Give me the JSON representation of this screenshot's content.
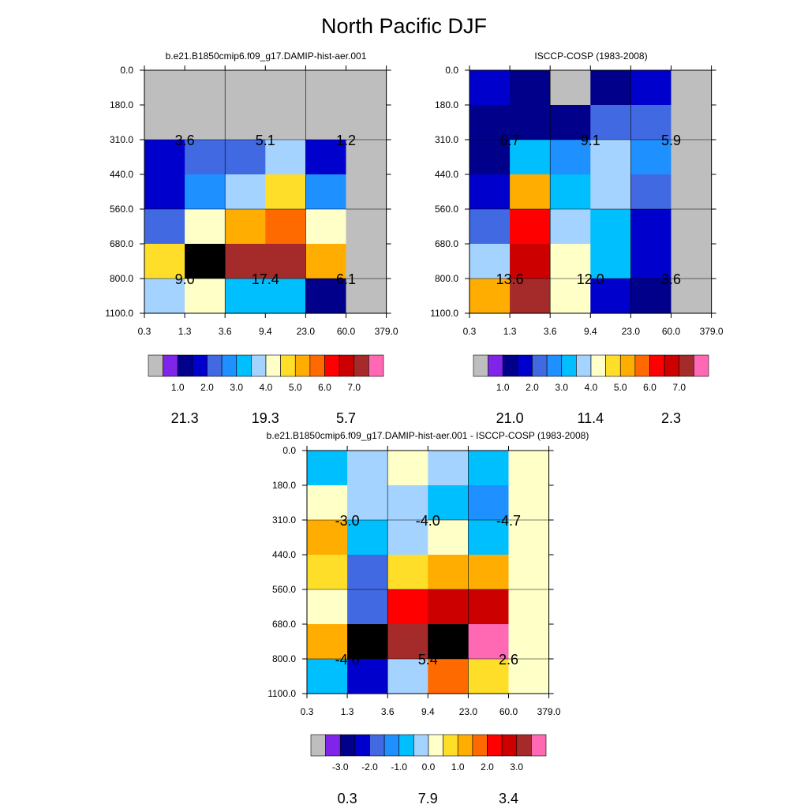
{
  "title": "North Pacific DJF",
  "x_tick_labels": [
    "0.3",
    "1.3",
    "3.6",
    "9.4",
    "23.0",
    "60.0",
    "379.0"
  ],
  "y_tick_labels": [
    "0.0",
    "180.0",
    "310.0",
    "440.0",
    "560.0",
    "680.0",
    "800.0",
    "1100.0"
  ],
  "colors": {
    "fill": "#bebebe",
    "palette": [
      "#7f24e8",
      "#00008b",
      "#0000cd",
      "#4169e1",
      "#1e90ff",
      "#00bfff",
      "#a4d3ff",
      "#ffffc8",
      "#ffde2a",
      "#ffad00",
      "#ff6a00",
      "#ff0000",
      "#cd0000",
      "#a52a2a",
      "#ff69b4"
    ]
  },
  "colorbars": {
    "abs": {
      "labels": [
        "1.0",
        "2.0",
        "3.0",
        "4.0",
        "5.0",
        "6.0",
        "7.0"
      ],
      "boxes": 16
    },
    "diff": {
      "labels": [
        "-3.0",
        "-2.0",
        "-1.0",
        "0.0",
        "1.0",
        "2.0",
        "3.0"
      ],
      "boxes": 16
    }
  },
  "chart_data": [
    {
      "type": "heatmap",
      "title": "b.e21.B1850cmip6.f09_g17.DAMIP-hist-aer.001",
      "x_edges": [
        0.3,
        1.3,
        3.6,
        9.4,
        23.0,
        60.0,
        379.0
      ],
      "y_edges": [
        0.0,
        180.0,
        310.0,
        440.0,
        560.0,
        680.0,
        800.0,
        1100.0
      ],
      "cell_color_index": [
        [
          0,
          0,
          0,
          0,
          0,
          0
        ],
        [
          0,
          0,
          0,
          0,
          0,
          0
        ],
        [
          3,
          4,
          4,
          7,
          3,
          0
        ],
        [
          3,
          5,
          7,
          9,
          5,
          0
        ],
        [
          4,
          8,
          10,
          11,
          8,
          0
        ],
        [
          9,
          16,
          14,
          14,
          10,
          0
        ],
        [
          7,
          8,
          6,
          6,
          2,
          0
        ]
      ],
      "annotations": [
        {
          "x_bin": 0,
          "y_row": 1,
          "text": "3.6"
        },
        {
          "x_bin": 1,
          "y_row": 1,
          "text": "5.1"
        },
        {
          "x_bin": 2,
          "y_row": 1,
          "text": "1.2"
        },
        {
          "x_bin": 0,
          "y_row": 3,
          "text": "9.0"
        },
        {
          "x_bin": 1,
          "y_row": 3,
          "text": "17.4"
        },
        {
          "x_bin": 2,
          "y_row": 3,
          "text": "6.1"
        },
        {
          "x_bin": 0,
          "y_row": 5,
          "text": "21.3"
        },
        {
          "x_bin": 1,
          "y_row": 5,
          "text": "19.3"
        },
        {
          "x_bin": 2,
          "y_row": 5,
          "text": "5.7"
        }
      ]
    },
    {
      "type": "heatmap",
      "title": "ISCCP-COSP (1983-2008)",
      "x_edges": [
        0.3,
        1.3,
        3.6,
        9.4,
        23.0,
        60.0,
        379.0
      ],
      "y_edges": [
        0.0,
        180.0,
        310.0,
        440.0,
        560.0,
        680.0,
        800.0,
        1100.0
      ],
      "cell_color_index": [
        [
          3,
          2,
          0,
          2,
          3,
          0
        ],
        [
          2,
          2,
          2,
          4,
          4,
          0
        ],
        [
          2,
          6,
          5,
          7,
          5,
          0
        ],
        [
          3,
          10,
          6,
          7,
          4,
          0
        ],
        [
          4,
          12,
          7,
          6,
          3,
          0
        ],
        [
          7,
          13,
          8,
          6,
          3,
          0
        ],
        [
          10,
          14,
          8,
          3,
          2,
          0
        ]
      ],
      "annotations": [
        {
          "x_bin": 0,
          "y_row": 1,
          "text": "6.7"
        },
        {
          "x_bin": 1,
          "y_row": 1,
          "text": "9.1"
        },
        {
          "x_bin": 2,
          "y_row": 1,
          "text": "5.9"
        },
        {
          "x_bin": 0,
          "y_row": 3,
          "text": "13.6"
        },
        {
          "x_bin": 1,
          "y_row": 3,
          "text": "12.0"
        },
        {
          "x_bin": 2,
          "y_row": 3,
          "text": "3.6"
        },
        {
          "x_bin": 0,
          "y_row": 5,
          "text": "21.0"
        },
        {
          "x_bin": 1,
          "y_row": 5,
          "text": "11.4"
        },
        {
          "x_bin": 2,
          "y_row": 5,
          "text": "2.3"
        }
      ]
    },
    {
      "type": "heatmap",
      "title": "b.e21.B1850cmip6.f09_g17.DAMIP-hist-aer.001 - ISCCP-COSP (1983-2008)",
      "x_edges": [
        0.3,
        1.3,
        3.6,
        9.4,
        23.0,
        60.0,
        379.0
      ],
      "y_edges": [
        0.0,
        180.0,
        310.0,
        440.0,
        560.0,
        680.0,
        800.0,
        1100.0
      ],
      "cell_color_index": [
        [
          6,
          7,
          8,
          7,
          6,
          8
        ],
        [
          8,
          7,
          7,
          6,
          5,
          8
        ],
        [
          10,
          6,
          7,
          8,
          6,
          8
        ],
        [
          9,
          4,
          9,
          10,
          10,
          8
        ],
        [
          8,
          4,
          12,
          13,
          13,
          8
        ],
        [
          10,
          16,
          14,
          16,
          15,
          8
        ],
        [
          6,
          3,
          7,
          11,
          9,
          8
        ]
      ],
      "annotations": [
        {
          "x_bin": 0,
          "y_row": 1,
          "text": "-3.0"
        },
        {
          "x_bin": 1,
          "y_row": 1,
          "text": "-4.0"
        },
        {
          "x_bin": 2,
          "y_row": 1,
          "text": "-4.7"
        },
        {
          "x_bin": 0,
          "y_row": 3,
          "text": "-4.6"
        },
        {
          "x_bin": 1,
          "y_row": 3,
          "text": "5.4"
        },
        {
          "x_bin": 2,
          "y_row": 3,
          "text": "2.6"
        },
        {
          "x_bin": 0,
          "y_row": 5,
          "text": "0.3"
        },
        {
          "x_bin": 1,
          "y_row": 5,
          "text": "7.9"
        },
        {
          "x_bin": 2,
          "y_row": 5,
          "text": "3.4"
        }
      ]
    }
  ]
}
